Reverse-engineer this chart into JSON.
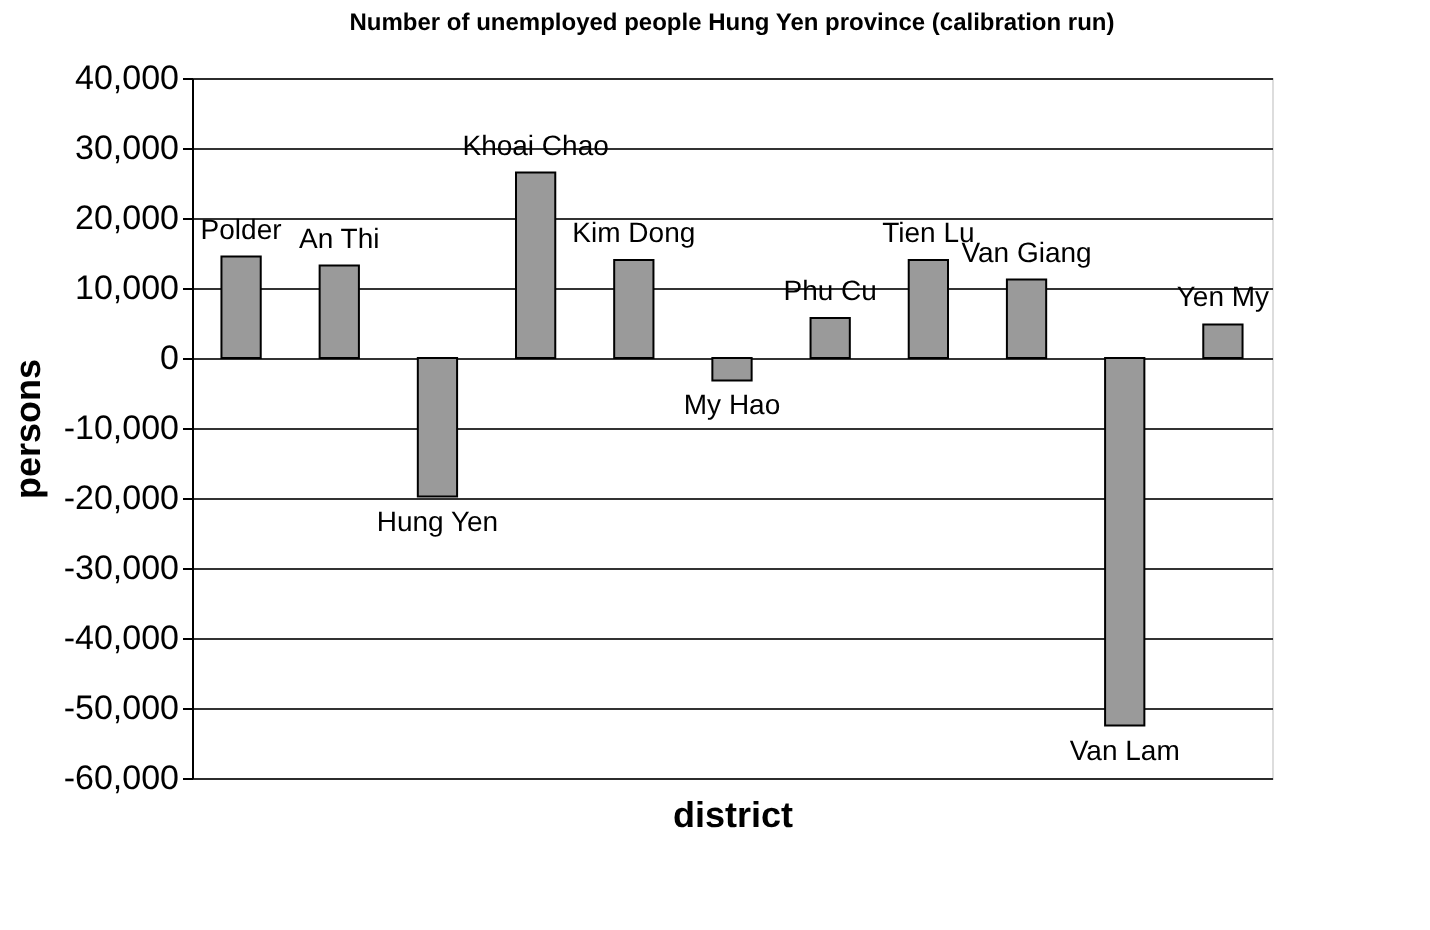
{
  "chart_data": {
    "type": "bar",
    "title": "Number of unemployed people Hung Yen province (calibration run)",
    "xlabel": "district",
    "ylabel": "persons",
    "categories": [
      "Polder",
      "An Thi",
      "Hung Yen",
      "Khoai Chao",
      "Kim Dong",
      "My Hao",
      "Phu Cu",
      "Tien Lu",
      "Van Giang",
      "Van Lam",
      "Yen My"
    ],
    "values": [
      14500,
      13200,
      -19800,
      26500,
      14000,
      -3200,
      5700,
      14000,
      11200,
      -52500,
      4800
    ],
    "color": "#9a9a9a",
    "ylim": [
      -60000,
      40000
    ],
    "yticks": [
      {
        "value": -60000,
        "label": "-60,000"
      },
      {
        "value": -50000,
        "label": "-50,000"
      },
      {
        "value": -40000,
        "label": "-40,000"
      },
      {
        "value": -30000,
        "label": "-30,000"
      },
      {
        "value": -20000,
        "label": "-20,000"
      },
      {
        "value": -10000,
        "label": "-10,000"
      },
      0,
      {
        "value": 10000,
        "label": "10,000"
      },
      {
        "value": 20000,
        "label": "20,000"
      },
      {
        "value": 30000,
        "label": "30,000"
      },
      {
        "value": 40000,
        "label": "40,000"
      }
    ],
    "grid": "y",
    "tick_labels": "y"
  }
}
